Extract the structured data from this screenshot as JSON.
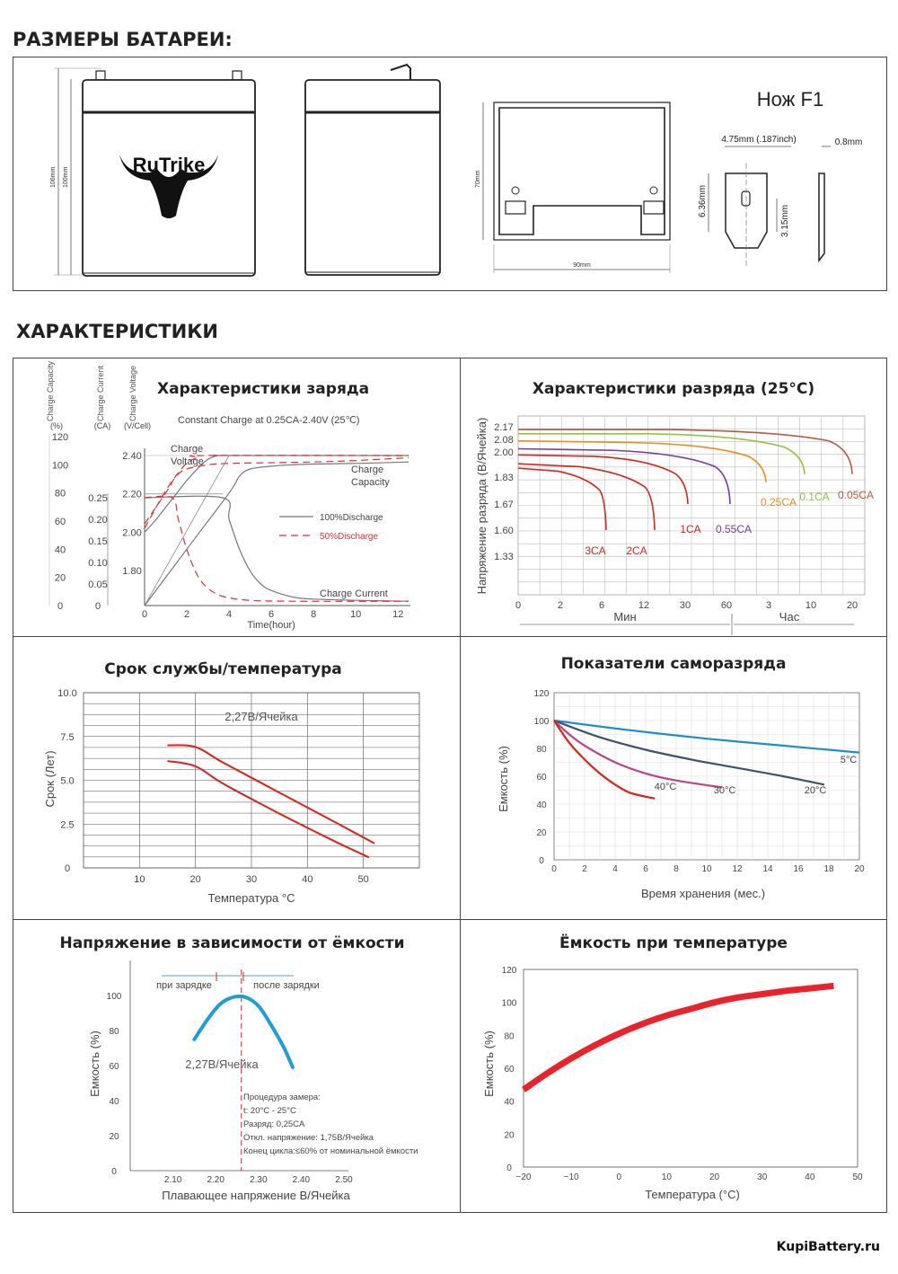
{
  "headings": {
    "dimensions": "РАЗМЕРЫ БАТАРЕИ:",
    "characteristics": "ХАРАКТЕРИСТИКИ"
  },
  "dimensions": {
    "brand": "RuTrike",
    "height_total": "106mm",
    "height_body": "100mm",
    "width_side": "70mm",
    "width_bottom": "90mm",
    "terminal_title": "Нож F1",
    "terminal_width": "4.75mm (.187inch)",
    "terminal_thickness": "0.8mm",
    "terminal_height": "6.36mm",
    "terminal_hole": "3.15mm"
  },
  "footer": "KupiBattery.ru",
  "chart_data": [
    {
      "id": "charge",
      "type": "line",
      "title": "Характеристики заряда",
      "subtitle": "Constant Charge at 0.25CA-2.40V  (25℃)",
      "xlabel": "Time(hour)",
      "xticks": [
        0,
        2,
        4,
        6,
        8,
        10,
        12
      ],
      "xlim": [
        0,
        12.5
      ],
      "axes": [
        {
          "label": "Charge Capacity",
          "unit": "(%)",
          "ticks": [
            "120",
            "100",
            "80",
            "60",
            "40",
            "20",
            "0"
          ]
        },
        {
          "label": "Charge Current",
          "unit": "(CA)",
          "ticks": [
            "0.25",
            "0.20",
            "0.15",
            "0.10",
            "0.05",
            "0"
          ]
        },
        {
          "label": "Charge Voltage",
          "unit": "(V/Cell)",
          "ticks": [
            "2.40",
            "2.20",
            "2.00",
            "1.80"
          ]
        }
      ],
      "annotations": [
        "Charge Voltage",
        "Charge Capacity",
        "Charge Current"
      ],
      "legend": [
        "100%Discharge",
        "50%Discharge"
      ],
      "series": [
        {
          "name": "100%Discharge voltage",
          "style": "solid",
          "color": "#777777",
          "x": [
            0,
            0.5,
            1,
            1.5,
            2,
            2.5,
            3,
            3.5,
            4,
            12.5
          ],
          "y": [
            2.0,
            2.06,
            2.13,
            2.2,
            2.27,
            2.33,
            2.38,
            2.4,
            2.4,
            2.4
          ]
        },
        {
          "name": "50%Discharge voltage",
          "style": "dashed",
          "color": "#e03030",
          "x": [
            0,
            0.4,
            0.8,
            1.2,
            1.6,
            2,
            2.5,
            3,
            12.5
          ],
          "y": [
            2.02,
            2.1,
            2.18,
            2.25,
            2.31,
            2.36,
            2.39,
            2.4,
            2.4
          ]
        },
        {
          "name": "100%Discharge current",
          "style": "solid",
          "color": "#777777",
          "x": [
            0,
            3.7,
            4.0,
            4.5,
            5,
            5.5,
            6,
            7,
            8,
            10,
            12.5
          ],
          "y": [
            0.25,
            0.25,
            0.2,
            0.13,
            0.08,
            0.05,
            0.035,
            0.02,
            0.015,
            0.012,
            0.01
          ]
        },
        {
          "name": "50%Discharge current",
          "style": "dashed",
          "color": "#e03030",
          "x": [
            0,
            1.3,
            1.6,
            2,
            2.5,
            3,
            3.5,
            4,
            5,
            7,
            12.5
          ],
          "y": [
            0.25,
            0.25,
            0.2,
            0.13,
            0.07,
            0.04,
            0.025,
            0.018,
            0.012,
            0.01,
            0.01
          ]
        },
        {
          "name": "100%Discharge capacity",
          "style": "solid",
          "color": "#777777",
          "x": [
            0,
            2,
            4,
            4.5,
            5,
            6,
            7,
            8,
            10,
            12.5
          ],
          "y": [
            0,
            40,
            80,
            92,
            97,
            99,
            100,
            100.5,
            101,
            102
          ]
        },
        {
          "name": "50%Discharge capacity",
          "style": "dashed",
          "color": "#e03030",
          "x": [
            0,
            1,
            1.5,
            2,
            3,
            4,
            6,
            8,
            10,
            12.5
          ],
          "y": [
            58,
            80,
            92,
            97,
            100,
            101,
            101.5,
            102,
            103,
            105
          ]
        }
      ]
    },
    {
      "id": "discharge",
      "type": "line",
      "title": "Характеристики разряда (25°C)",
      "ylabel": "Напряжение разряда (В/Ячейка)",
      "yticks": [
        "2.17",
        "2.08",
        "2.00",
        "1.83",
        "1.67",
        "1.60",
        "1.33"
      ],
      "xticks": [
        "0",
        "2",
        "6",
        "12",
        "30",
        "60",
        "3",
        "10",
        "20"
      ],
      "xgroups": [
        "Мин",
        "Час"
      ],
      "series": [
        {
          "name": "3CA",
          "color": "#e0201b",
          "values": [
            1.89,
            1.87,
            1.83,
            1.75,
            1.6
          ]
        },
        {
          "name": "2CA",
          "color": "#e0201b",
          "values": [
            1.92,
            1.9,
            1.86,
            1.77,
            1.6
          ]
        },
        {
          "name": "1CA",
          "color": "#e0201b",
          "values": [
            1.98,
            1.97,
            1.95,
            1.85,
            1.67
          ]
        },
        {
          "name": "0.55CA",
          "color": "#7b3a9a",
          "values": [
            2.02,
            2.01,
            1.99,
            1.9,
            1.67
          ]
        },
        {
          "name": "0.25CA",
          "color": "#f08a1a",
          "values": [
            2.07,
            2.06,
            2.05,
            1.97,
            1.8
          ]
        },
        {
          "name": "0.1CA",
          "color": "#8cc63f",
          "values": [
            2.12,
            2.12,
            2.11,
            2.03,
            1.85
          ]
        },
        {
          "name": "0.05CA",
          "color": "#b85a46",
          "values": [
            2.15,
            2.15,
            2.14,
            2.07,
            1.85
          ]
        }
      ]
    },
    {
      "id": "life",
      "type": "line",
      "title": "Срок службы/температура",
      "xlabel": "Температура °C",
      "ylabel": "Срок (Лет)",
      "xticks": [
        "10",
        "20",
        "30",
        "40",
        "50"
      ],
      "yticks": [
        "10.0",
        "7.5",
        "5.0",
        "2.5",
        "0"
      ],
      "xlim": [
        0,
        60
      ],
      "ylim": [
        0,
        10
      ],
      "annotation": "2,27В/Ячейка",
      "series": [
        {
          "name": "upper",
          "color": "#e0201b",
          "x": [
            15,
            20,
            25,
            35,
            45,
            52
          ],
          "y": [
            7.0,
            6.9,
            6.0,
            4.3,
            2.6,
            1.4
          ]
        },
        {
          "name": "lower",
          "color": "#e0201b",
          "x": [
            15,
            20,
            25,
            35,
            45,
            51
          ],
          "y": [
            6.1,
            5.8,
            4.8,
            3.1,
            1.5,
            0.6
          ]
        }
      ]
    },
    {
      "id": "selfdischarge",
      "type": "line",
      "title": "Показатели саморазряда",
      "xlabel": "Время хранения (мес.)",
      "ylabel": "Емкость (%)",
      "xticks": [
        "0",
        "2",
        "4",
        "6",
        "8",
        "10",
        "12",
        "14",
        "16",
        "18",
        "20"
      ],
      "yticks": [
        "120",
        "100",
        "80",
        "60",
        "40",
        "20",
        "0"
      ],
      "xlim": [
        0,
        20
      ],
      "ylim": [
        0,
        120
      ],
      "series": [
        {
          "name": "5°C",
          "color": "#1a8fd0",
          "x": [
            0,
            5,
            10,
            15,
            20
          ],
          "y": [
            100,
            93,
            87,
            82,
            77
          ]
        },
        {
          "name": "20°C",
          "color": "#3b5270",
          "x": [
            0,
            3,
            6,
            9,
            12,
            15,
            17.7
          ],
          "y": [
            100,
            88,
            79,
            72,
            66,
            60,
            54
          ]
        },
        {
          "name": "30°C",
          "color": "#c0408a",
          "x": [
            0,
            1,
            2,
            4,
            6,
            8,
            11
          ],
          "y": [
            100,
            90,
            82,
            70,
            62,
            57,
            52
          ]
        },
        {
          "name": "40°C",
          "color": "#e0201b",
          "x": [
            0,
            1,
            2,
            3,
            4,
            5,
            6.6
          ],
          "y": [
            100,
            84,
            72,
            62,
            54,
            48,
            44
          ]
        }
      ]
    },
    {
      "id": "voltage_capacity",
      "type": "line",
      "title": "Напряжение в зависимости от ёмкости",
      "xlabel": "Плавающее напряжение В/Ячейка",
      "ylabel": "Емкость (%)",
      "xticks": [
        "2.10",
        "2.20",
        "2.30",
        "2.40",
        "2.50"
      ],
      "yticks": [
        "100",
        "80",
        "60",
        "40",
        "20",
        "0"
      ],
      "xlim": [
        2.0,
        2.5
      ],
      "ylim": [
        0,
        120
      ],
      "annotation": "2,27В/Ячейка",
      "arrows": [
        "при зарядке",
        "после зарядки"
      ],
      "notes": [
        "Процедура замера:",
        "t: 20°C - 25°C",
        "Разряд: 0,25CA",
        "Откл. напряжение: 1,75В/Ячейка",
        "Конец цикла:≤60% от номинальной ёмкости"
      ],
      "series": [
        {
          "name": "capacity",
          "color": "#1a9ee0",
          "x": [
            2.15,
            2.18,
            2.21,
            2.24,
            2.27,
            2.3,
            2.33,
            2.36,
            2.38
          ],
          "y": [
            75,
            86,
            95,
            99,
            99,
            94,
            83,
            70,
            59
          ]
        }
      ]
    },
    {
      "id": "capacity_temperature",
      "type": "line",
      "title": "Ёмкость при температуре",
      "xlabel": "Температура (°C)",
      "ylabel": "Емкость (%)",
      "xticks": [
        "−20",
        "−10",
        "0",
        "10",
        "20",
        "30",
        "40",
        "50"
      ],
      "yticks": [
        "120",
        "100",
        "80",
        "60",
        "40",
        "20",
        "0"
      ],
      "xlim": [
        -20,
        50
      ],
      "ylim": [
        0,
        120
      ],
      "series": [
        {
          "name": "capacity",
          "color": "#ee2028",
          "x": [
            -20,
            -15,
            -10,
            -5,
            0,
            5,
            10,
            15,
            20,
            25,
            30,
            35,
            40,
            45
          ],
          "y": [
            47,
            57,
            66,
            74,
            81,
            87,
            92,
            96,
            100,
            103,
            105,
            107,
            108.5,
            110
          ]
        }
      ]
    }
  ]
}
